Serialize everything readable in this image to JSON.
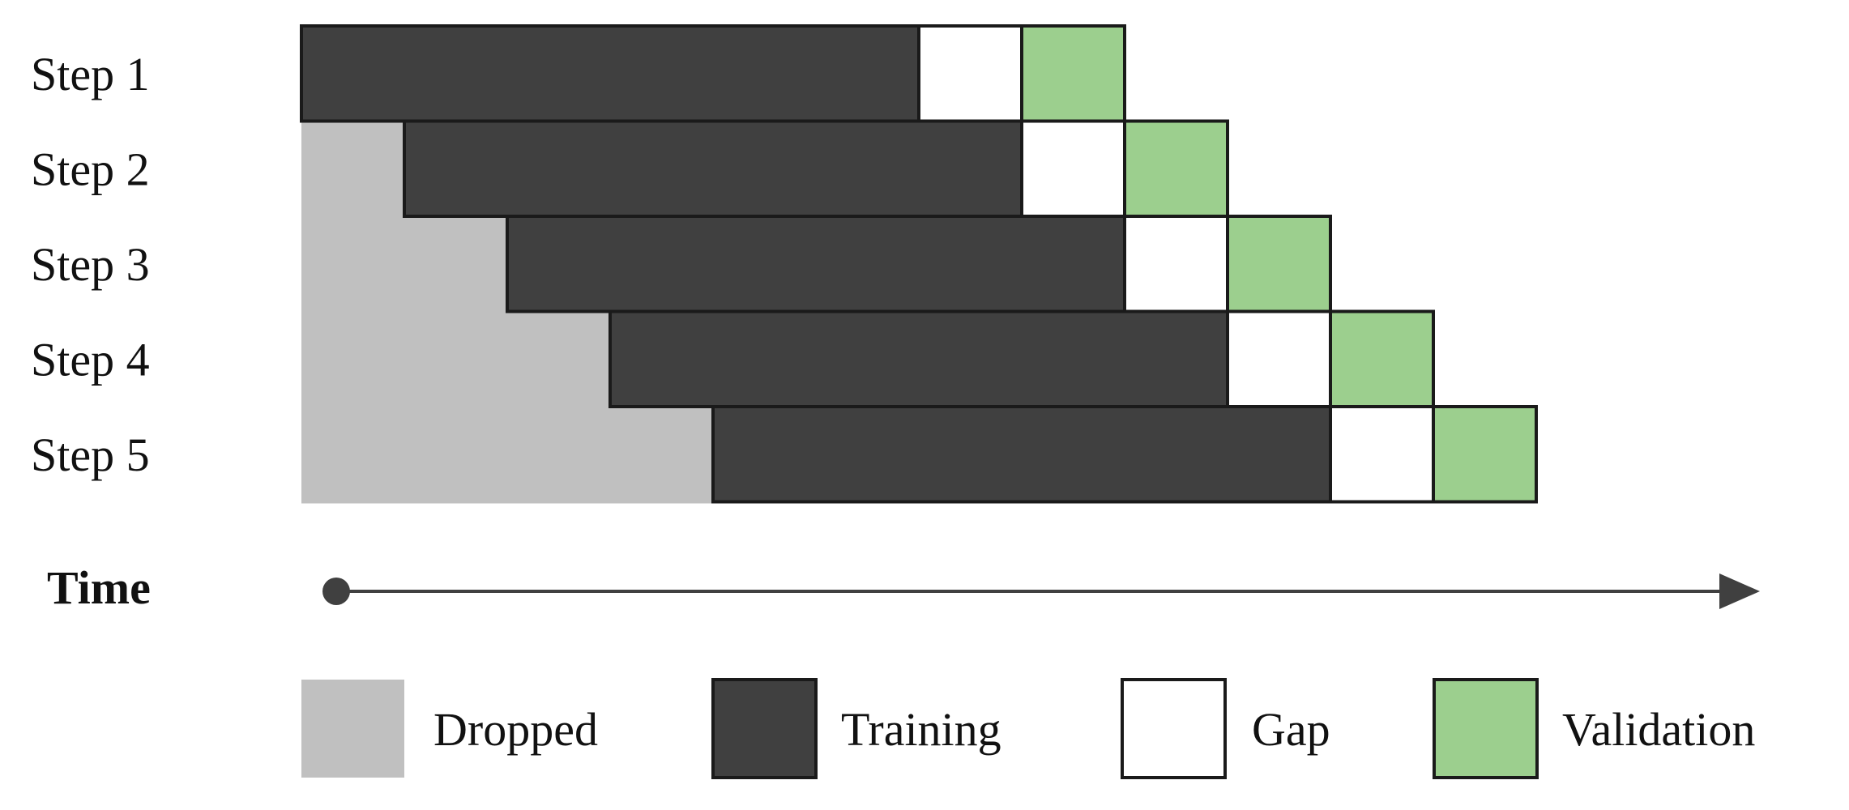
{
  "steps": [
    {
      "label": "Step 1",
      "dropped": 0,
      "training": 6,
      "gap": 1,
      "validation": 1
    },
    {
      "label": "Step 2",
      "dropped": 1,
      "training": 6,
      "gap": 1,
      "validation": 1
    },
    {
      "label": "Step 3",
      "dropped": 2,
      "training": 6,
      "gap": 1,
      "validation": 1
    },
    {
      "label": "Step 4",
      "dropped": 3,
      "training": 6,
      "gap": 1,
      "validation": 1
    },
    {
      "label": "Step 5",
      "dropped": 4,
      "training": 6,
      "gap": 1,
      "validation": 1
    }
  ],
  "axis": {
    "label": "Time"
  },
  "legend": [
    {
      "key": "dropped",
      "label": "Dropped"
    },
    {
      "key": "training",
      "label": "Training"
    },
    {
      "key": "gap",
      "label": "Gap"
    },
    {
      "key": "validation",
      "label": "Validation"
    }
  ],
  "colors": {
    "dropped": "#c0c0c0",
    "training": "#404040",
    "gap": "#ffffff",
    "validation": "#9ccf8e",
    "outline": "#1a1a1a",
    "axis": "#404040"
  }
}
